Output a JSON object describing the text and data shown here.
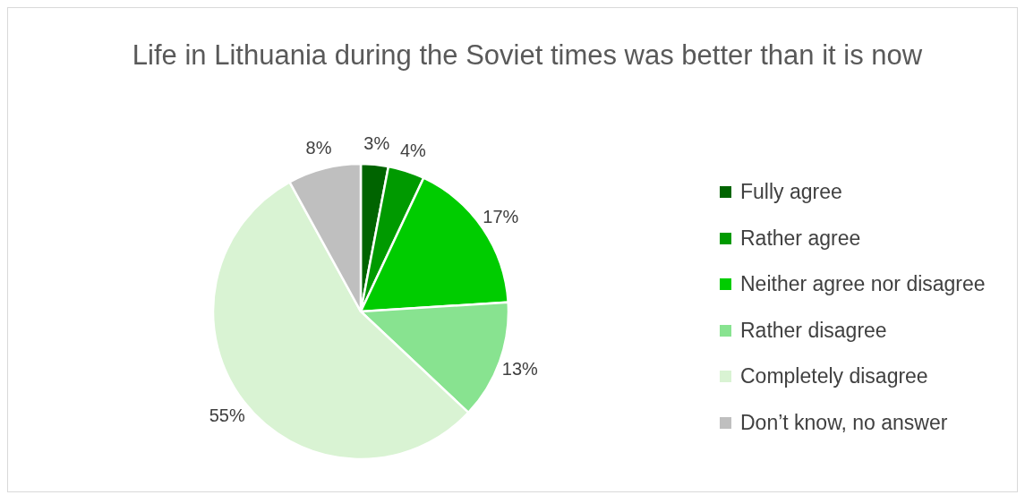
{
  "chart_data": {
    "type": "pie",
    "title": "Life in Lithuania during the Soviet times was better than it is now",
    "categories": [
      "Fully agree",
      "Rather agree",
      "Neither agree nor disagree",
      "Rather disagree",
      "Completely disagree",
      "Don’t know, no answer"
    ],
    "values": [
      3,
      4,
      17,
      13,
      55,
      8
    ],
    "value_labels": [
      "3%",
      "4%",
      "17%",
      "13%",
      "55%",
      "8%"
    ],
    "colors": [
      "#006400",
      "#009a00",
      "#00cc00",
      "#88e390",
      "#d9f3d3",
      "#bfbfbf"
    ],
    "legend": "right"
  }
}
